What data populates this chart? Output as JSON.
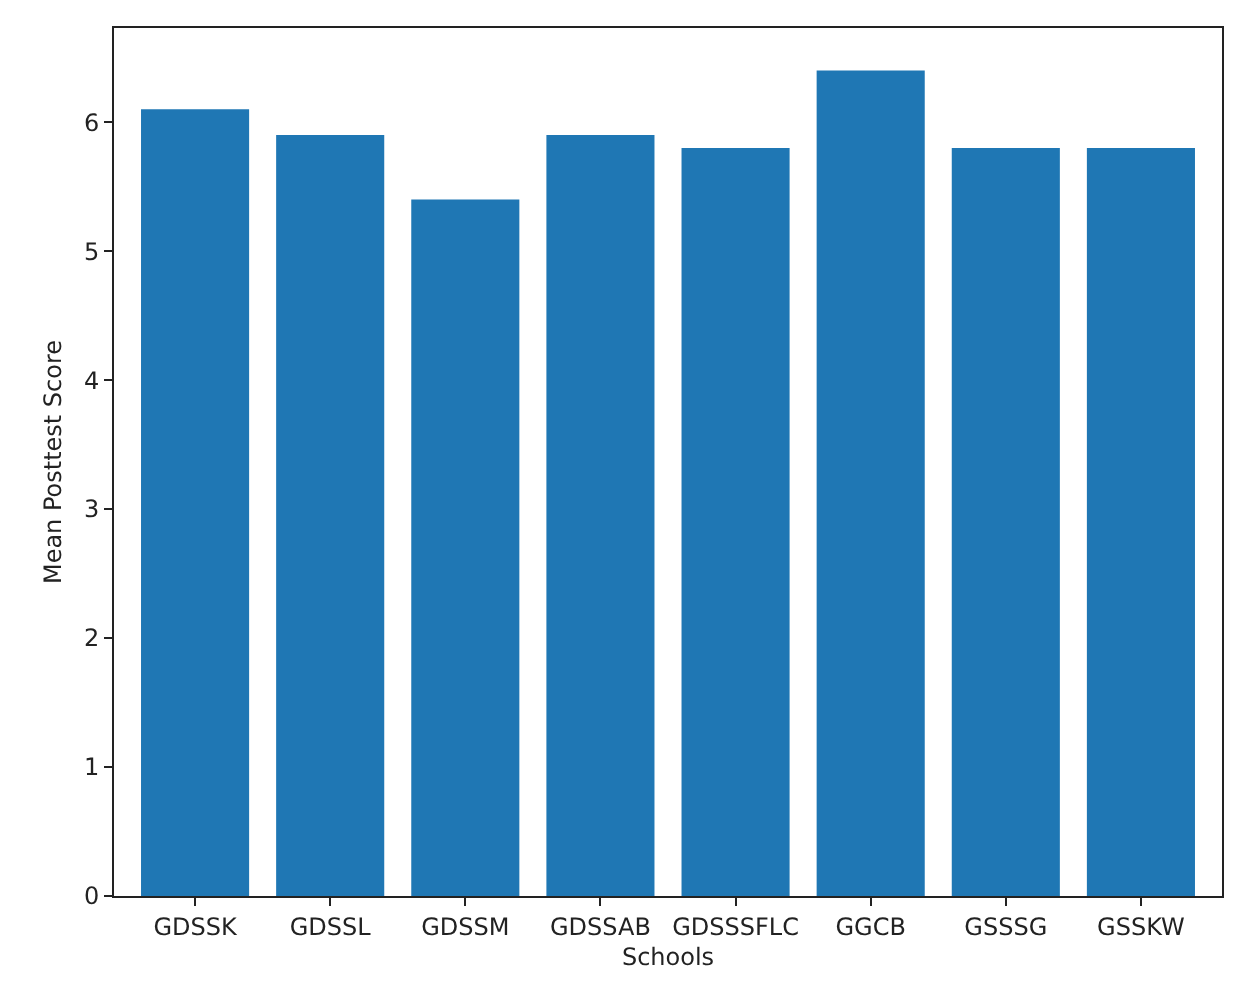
{
  "chart_data": {
    "type": "bar",
    "xlabel": "Schools",
    "ylabel": "Mean Posttest Score",
    "categories": [
      "GDSSK",
      "GDSSL",
      "GDSSM",
      "GDSSAB",
      "GDSSSFLC",
      "GGCB",
      "GSSSG",
      "GSSKW"
    ],
    "values": [
      6.1,
      5.9,
      5.4,
      5.9,
      5.8,
      6.4,
      5.8,
      5.8
    ],
    "color": "#1f77b4",
    "ylim": [
      0,
      6.73
    ],
    "yticks": [
      0,
      1,
      2,
      3,
      4,
      5,
      6
    ],
    "grid": false
  }
}
